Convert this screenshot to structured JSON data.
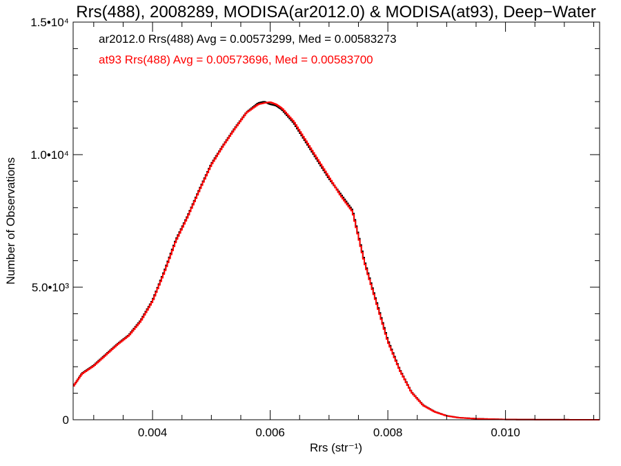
{
  "chart_data": {
    "type": "line",
    "title": "Rrs(488), 2008289, MODISA(ar2012.0) & MODISA(at93), Deep−Water",
    "xlabel": "Rrs (str⁻¹)",
    "ylabel": "Number of Observations",
    "xlim": [
      0.00265,
      0.0116
    ],
    "ylim": [
      0,
      15000
    ],
    "grid": false,
    "x_ticks": [
      {
        "value": 0.004,
        "label": "0.004"
      },
      {
        "value": 0.006,
        "label": "0.006"
      },
      {
        "value": 0.008,
        "label": "0.008"
      },
      {
        "value": 0.01,
        "label": "0.010"
      }
    ],
    "y_ticks": [
      {
        "value": 0,
        "label": "0"
      },
      {
        "value": 5000,
        "label": "5.0•10³"
      },
      {
        "value": 10000,
        "label": "1.0•10⁴"
      },
      {
        "value": 15000,
        "label": "1.5•10⁴"
      }
    ],
    "x": [
      0.00265,
      0.0028,
      0.003,
      0.0032,
      0.0034,
      0.0036,
      0.0038,
      0.004,
      0.0042,
      0.0044,
      0.0046,
      0.0048,
      0.005,
      0.0052,
      0.0054,
      0.0056,
      0.0058,
      0.0059,
      0.006,
      0.0061,
      0.0062,
      0.0064,
      0.0066,
      0.0068,
      0.007,
      0.0072,
      0.0074,
      0.0076,
      0.0078,
      0.008,
      0.0082,
      0.0084,
      0.0086,
      0.0088,
      0.009,
      0.0092,
      0.0095,
      0.01,
      0.0105,
      0.011,
      0.0116
    ],
    "series": [
      {
        "name": "",
        "color": "#000000",
        "values": [
          1250,
          1750,
          2050,
          2450,
          2850,
          3200,
          3750,
          4500,
          5600,
          6800,
          7700,
          8700,
          9650,
          10350,
          11000,
          11600,
          11950,
          12000,
          11900,
          11850,
          11700,
          11200,
          10500,
          9800,
          9100,
          8500,
          7900,
          6000,
          4500,
          3000,
          1900,
          1050,
          550,
          300,
          150,
          80,
          40,
          10,
          5,
          2,
          0
        ]
      },
      {
        "name": "",
        "color": "#ff0000",
        "values": [
          1250,
          1730,
          2030,
          2430,
          2830,
          3180,
          3720,
          4470,
          5560,
          6760,
          7670,
          8670,
          9620,
          10330,
          10980,
          11590,
          11900,
          11950,
          11980,
          11900,
          11750,
          11250,
          10550,
          9850,
          9150,
          8450,
          7850,
          5950,
          4450,
          2950,
          1880,
          1040,
          540,
          295,
          148,
          78,
          39,
          10,
          5,
          2,
          0
        ]
      }
    ],
    "annotations": [
      {
        "text": "ar2012.0 Rrs(488) Avg = 0.00573299, Med = 0.00583273",
        "color": "#000000"
      },
      {
        "text": "at93 Rrs(488) Avg = 0.00573696, Med = 0.00583700",
        "color": "#ff0000"
      }
    ]
  }
}
